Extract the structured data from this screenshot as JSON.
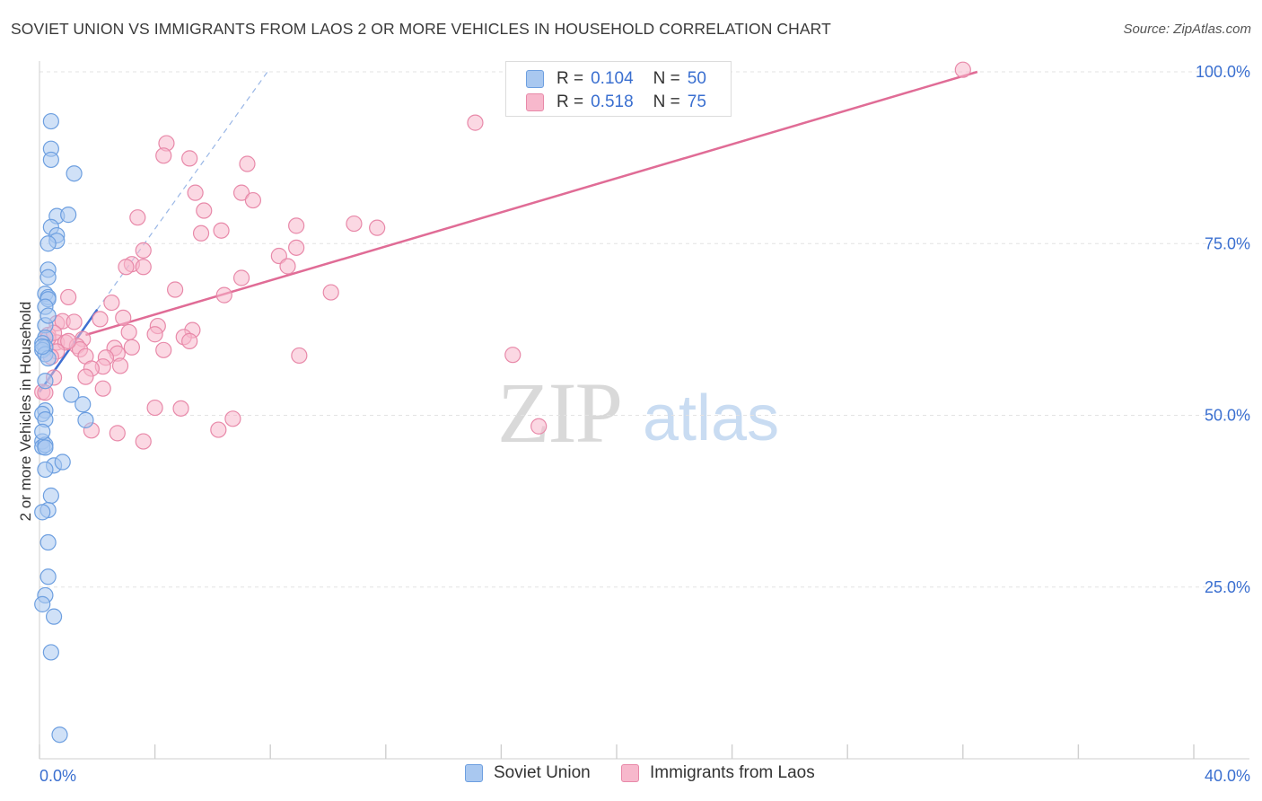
{
  "title": "SOVIET UNION VS IMMIGRANTS FROM LAOS 2 OR MORE VEHICLES IN HOUSEHOLD CORRELATION CHART",
  "source": "Source: ZipAtlas.com",
  "watermark": {
    "zip": "ZIP",
    "atlas": "atlas"
  },
  "colors": {
    "blue_fill": "#a9c8f0",
    "blue_stroke": "#6d9fe0",
    "blue_line": "#3f6fd1",
    "pink_fill": "#f7b8cc",
    "pink_stroke": "#e889a9",
    "pink_line": "#e06c96",
    "axis_label": "#3a6fd0",
    "grid": "#e3e3e3"
  },
  "legend_stats": [
    {
      "r_label": "R =",
      "r_value": "0.104",
      "n_label": "N =",
      "n_value": "50"
    },
    {
      "r_label": "R =",
      "r_value": "0.518",
      "n_label": "N =",
      "n_value": "75"
    }
  ],
  "chart_data": {
    "type": "scatter",
    "title": "SOVIET UNION VS IMMIGRANTS FROM LAOS 2 OR MORE VEHICLES IN HOUSEHOLD CORRELATION CHART",
    "xlabel": "",
    "ylabel": "2 or more Vehicles in Household",
    "xlim": [
      0,
      40
    ],
    "ylim": [
      0,
      103
    ],
    "x_tick_labels": [
      "0.0%",
      "40.0%"
    ],
    "y_tick_labels": [
      "100.0%",
      "75.0%",
      "50.0%",
      "25.0%"
    ],
    "y_ticks": [
      100,
      75,
      50,
      25
    ],
    "grid": true,
    "legend_position": "bottom",
    "series": [
      {
        "name": "Soviet Union",
        "color": "#a9c8f0",
        "r": 0.104,
        "n": 50,
        "points": [
          [
            0.4,
            92.8
          ],
          [
            0.4,
            88.8
          ],
          [
            0.4,
            87.2
          ],
          [
            1.2,
            85.2
          ],
          [
            0.6,
            79.0
          ],
          [
            1.0,
            79.2
          ],
          [
            0.4,
            77.4
          ],
          [
            0.6,
            76.2
          ],
          [
            0.6,
            75.4
          ],
          [
            0.3,
            75.0
          ],
          [
            0.3,
            71.2
          ],
          [
            0.3,
            70.1
          ],
          [
            0.2,
            67.7
          ],
          [
            0.3,
            67.2
          ],
          [
            0.3,
            66.9
          ],
          [
            0.2,
            65.8
          ],
          [
            0.2,
            63.1
          ],
          [
            0.2,
            61.3
          ],
          [
            0.1,
            60.5
          ],
          [
            0.2,
            59.9
          ],
          [
            0.1,
            59.5
          ],
          [
            0.2,
            58.9
          ],
          [
            0.3,
            58.3
          ],
          [
            1.1,
            53.0
          ],
          [
            1.5,
            51.6
          ],
          [
            0.2,
            50.7
          ],
          [
            0.1,
            50.2
          ],
          [
            0.2,
            49.4
          ],
          [
            1.6,
            49.3
          ],
          [
            0.1,
            46.2
          ],
          [
            0.1,
            45.4
          ],
          [
            0.2,
            45.7
          ],
          [
            0.2,
            45.3
          ],
          [
            0.5,
            42.7
          ],
          [
            0.8,
            43.2
          ],
          [
            0.2,
            42.1
          ],
          [
            0.4,
            38.3
          ],
          [
            0.3,
            36.2
          ],
          [
            0.1,
            35.9
          ],
          [
            0.3,
            31.5
          ],
          [
            0.3,
            26.5
          ],
          [
            0.2,
            23.8
          ],
          [
            0.1,
            22.5
          ],
          [
            0.5,
            20.7
          ],
          [
            0.4,
            15.5
          ],
          [
            0.7,
            3.5
          ],
          [
            0.1,
            60.0
          ],
          [
            0.2,
            55.0
          ],
          [
            0.1,
            47.6
          ],
          [
            0.3,
            64.5
          ]
        ],
        "trend": {
          "x0": 0.0,
          "y0": 53.4,
          "x1": 2.0,
          "y1": 65.4,
          "extension_x1": 7.9,
          "extension_y1": 100.0
        }
      },
      {
        "name": "Immigrants from Laos",
        "color": "#f7b8cc",
        "r": 0.518,
        "n": 75,
        "points": [
          [
            32.0,
            100.3
          ],
          [
            15.1,
            92.6
          ],
          [
            4.4,
            89.6
          ],
          [
            4.3,
            87.8
          ],
          [
            5.2,
            87.4
          ],
          [
            7.2,
            86.6
          ],
          [
            5.4,
            82.4
          ],
          [
            7.0,
            82.4
          ],
          [
            7.4,
            81.3
          ],
          [
            5.7,
            79.8
          ],
          [
            3.4,
            78.8
          ],
          [
            10.9,
            77.9
          ],
          [
            11.7,
            77.3
          ],
          [
            8.9,
            77.6
          ],
          [
            6.3,
            76.9
          ],
          [
            5.6,
            76.5
          ],
          [
            8.9,
            74.4
          ],
          [
            3.6,
            74.0
          ],
          [
            8.3,
            73.2
          ],
          [
            3.2,
            72.0
          ],
          [
            8.6,
            71.7
          ],
          [
            3.0,
            71.6
          ],
          [
            3.6,
            71.6
          ],
          [
            7.0,
            70.0
          ],
          [
            10.1,
            67.9
          ],
          [
            4.7,
            68.3
          ],
          [
            6.4,
            67.5
          ],
          [
            1.0,
            67.2
          ],
          [
            2.5,
            66.4
          ],
          [
            0.6,
            63.4
          ],
          [
            0.8,
            63.7
          ],
          [
            1.2,
            63.6
          ],
          [
            2.1,
            64.0
          ],
          [
            2.9,
            64.2
          ],
          [
            4.1,
            63.0
          ],
          [
            5.3,
            62.4
          ],
          [
            3.1,
            62.1
          ],
          [
            4.0,
            61.8
          ],
          [
            1.5,
            61.1
          ],
          [
            0.3,
            61.7
          ],
          [
            0.6,
            60.6
          ],
          [
            0.9,
            60.6
          ],
          [
            5.0,
            61.4
          ],
          [
            5.2,
            60.8
          ],
          [
            1.3,
            60.1
          ],
          [
            2.6,
            59.8
          ],
          [
            3.2,
            59.9
          ],
          [
            4.3,
            59.5
          ],
          [
            0.6,
            59.3
          ],
          [
            1.4,
            59.6
          ],
          [
            2.7,
            59.0
          ],
          [
            1.6,
            58.6
          ],
          [
            0.4,
            58.5
          ],
          [
            2.3,
            58.4
          ],
          [
            16.4,
            58.8
          ],
          [
            9.0,
            58.7
          ],
          [
            2.2,
            57.1
          ],
          [
            2.8,
            57.2
          ],
          [
            1.8,
            56.8
          ],
          [
            1.6,
            55.6
          ],
          [
            0.5,
            55.5
          ],
          [
            2.2,
            53.9
          ],
          [
            0.1,
            53.4
          ],
          [
            0.2,
            53.3
          ],
          [
            4.0,
            51.1
          ],
          [
            4.9,
            51.0
          ],
          [
            6.7,
            49.5
          ],
          [
            17.3,
            48.4
          ],
          [
            1.8,
            47.8
          ],
          [
            6.2,
            47.9
          ],
          [
            2.7,
            47.4
          ],
          [
            3.6,
            46.2
          ],
          [
            0.3,
            61.2
          ],
          [
            0.5,
            62.0
          ],
          [
            1.0,
            60.8
          ]
        ],
        "trend": {
          "x0": 1.6,
          "y0": 61.7,
          "x1": 32.5,
          "y1": 100.0
        }
      }
    ]
  }
}
